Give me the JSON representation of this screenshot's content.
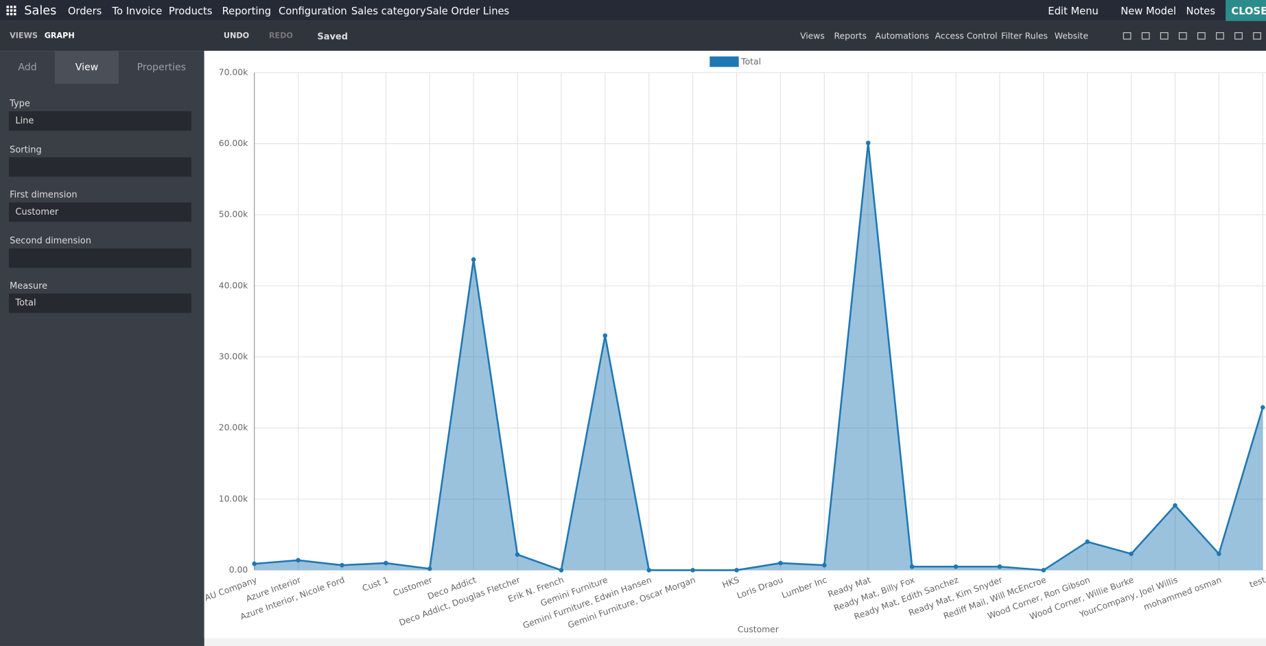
{
  "navbar": {
    "app": "Sales",
    "menu": [
      "Orders",
      "To Invoice",
      "Products",
      "Reporting",
      "Configuration",
      "Sales category",
      "Sale Order Lines"
    ],
    "actions": [
      "Edit Menu",
      "New Model",
      "Notes",
      "CLOSE"
    ]
  },
  "toolbar": {
    "views": "VIEWS",
    "current": "GRAPH",
    "undo": "UNDO",
    "redo": "REDO",
    "status": "Saved",
    "links": [
      "Views",
      "Reports",
      "Automations",
      "Access Control",
      "Filter Rules",
      "Website"
    ]
  },
  "sidebar": {
    "tabs": [
      "Add",
      "View",
      "Properties"
    ],
    "fields": [
      {
        "label": "Type",
        "value": "Line"
      },
      {
        "label": "Sorting"
      },
      {
        "label": "First dimension",
        "value": "Customer"
      },
      {
        "label": "Second dimension"
      },
      {
        "label": "Measure",
        "value": "Total"
      }
    ]
  },
  "chart_data": {
    "type": "line",
    "x_label": "Customer",
    "area": true,
    "grid": true,
    "legend": "top",
    "categories": [
      "AU Company",
      "Azure Interior",
      "Azure Interior, Nicole Ford",
      "Cust 1",
      "Customer",
      "Deco Addict",
      "Deco Addict, Douglas Fletcher",
      "Erik N. French",
      "Gemini Furniture",
      "Gemini Furniture, Edwin Hansen",
      "Gemini Furniture, Oscar Morgan",
      "HKS",
      "Loris Draou",
      "Lumber Inc",
      "Ready Mat",
      "Ready Mat, Billy Fox",
      "Ready Mat, Edith Sanchez",
      "Ready Mat, Kim Snyder",
      "Rediff Mail, Will McEncroe",
      "Wood Corner, Ron Gibson",
      "Wood Corner, Willie Burke",
      "YourCompany, Joel Willis",
      "mohammed osman",
      "test"
    ],
    "series": [
      {
        "name": "Total",
        "color": "#1f77b4",
        "values": [
          900,
          1400,
          700,
          1000,
          200,
          43700,
          2200,
          0,
          33000,
          0,
          0,
          0,
          1000,
          700,
          60100,
          500,
          500,
          500,
          0,
          4000,
          2300,
          9100,
          2300,
          22900
        ]
      }
    ],
    "ylim": [
      0,
      70000
    ],
    "yticks": [
      {
        "value": 0,
        "label": "0.00"
      },
      {
        "value": 10000,
        "label": "10.00k"
      },
      {
        "value": 20000,
        "label": "20.00k"
      },
      {
        "value": 30000,
        "label": "30.00k"
      },
      {
        "value": 40000,
        "label": "40.00k"
      },
      {
        "value": 50000,
        "label": "50.00k"
      },
      {
        "value": 60000,
        "label": "60.00k"
      },
      {
        "value": 70000,
        "label": "70.00k"
      }
    ]
  }
}
